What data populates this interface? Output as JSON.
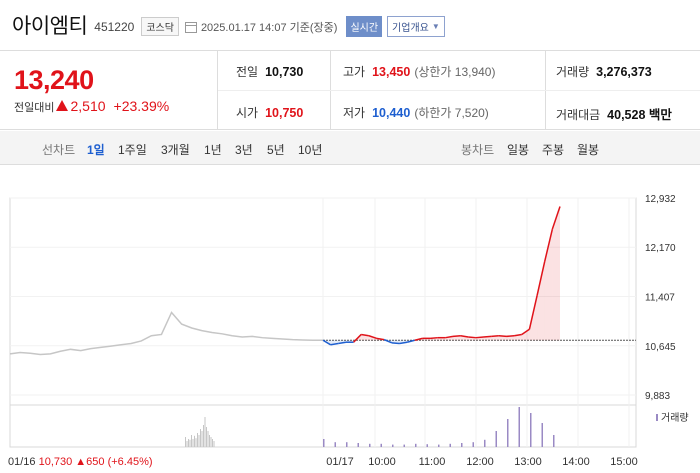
{
  "header": {
    "name": "아이엠티",
    "code": "451220",
    "market": "코스닥",
    "timestamp": "2025.01.17 14:07 기준(장중)",
    "realtime_label": "실시간",
    "info_label": "기업개요",
    "icons": {
      "calendar": "calendar-icon",
      "dropdown": "chevron-down-icon"
    }
  },
  "summary": {
    "price": "13,240",
    "change_label": "전일대비",
    "change_amount": "2,510",
    "change_pct": "+23.39%",
    "prev_close": {
      "label": "전일",
      "value": "10,730"
    },
    "open": {
      "label": "시가",
      "value": "10,750"
    },
    "high": {
      "label": "고가",
      "value": "13,450",
      "sub": "(상한가 13,940)"
    },
    "low": {
      "label": "저가",
      "value": "10,440",
      "sub": "(하한가 7,520)"
    },
    "volume": {
      "label": "거래량",
      "value": "3,276,373"
    },
    "amount": {
      "label": "거래대금",
      "value": "40,528 백만"
    }
  },
  "tabs": {
    "line_label": "선차트",
    "line": [
      "1일",
      "1주일",
      "3개월",
      "1년",
      "3년",
      "5년",
      "10년"
    ],
    "active": "1일",
    "candle_label": "봉차트",
    "candle": [
      "일봉",
      "주봉",
      "월봉"
    ]
  },
  "colors": {
    "up": "#e0131a",
    "down": "#1e5fd0",
    "prev_day": "#c6c6c6",
    "volume": "#9a8ac4"
  },
  "chart_data": {
    "type": "line",
    "y_ticks": [
      "12,932",
      "12,170",
      "11,407",
      "10,645",
      "9,883"
    ],
    "ylim": [
      9883,
      12932
    ],
    "reference_price": 10730,
    "x_labels": [
      "01/17",
      "10:00",
      "11:00",
      "12:00",
      "13:00",
      "14:00",
      "15:00"
    ],
    "volume_legend": "거래량",
    "prev_day_info": {
      "date": "01/16",
      "price": "10,730",
      "change": "650",
      "pct": "(+6.45%)"
    },
    "series": [
      {
        "values": [
          10520,
          10540,
          10530,
          10510,
          10520,
          10560,
          10590,
          10570,
          10600,
          10620,
          10640,
          10660,
          10680,
          10720,
          10800,
          10820,
          11160,
          10980,
          10920,
          10880,
          10850,
          10830,
          10800,
          10780,
          10790,
          10770,
          10760,
          10750,
          10740,
          10735,
          10730,
          10730
        ]
      },
      {
        "values": [
          10730,
          10660,
          10680,
          10700,
          10700,
          10820,
          10800,
          10760,
          10740,
          10690,
          10680,
          10700,
          10730,
          10760,
          10760,
          10770,
          10770,
          10790,
          10800,
          10780,
          10770,
          10780,
          10790,
          10800,
          10790,
          10800,
          10820,
          10900,
          11420,
          11950,
          12450,
          12800
        ]
      }
    ],
    "volume": {
      "prev_day": [
        0.25,
        0.15,
        0.2,
        0.18,
        0.3,
        0.2,
        0.28,
        0.22,
        0.35,
        0.3,
        0.45,
        0.4,
        0.55,
        0.75,
        0.5,
        0.4,
        0.3,
        0.25,
        0.2,
        0.15
      ],
      "today": [
        0.2,
        0.12,
        0.12,
        0.1,
        0.08,
        0.08,
        0.06,
        0.06,
        0.08,
        0.07,
        0.06,
        0.08,
        0.1,
        0.12,
        0.18,
        0.4,
        0.7,
        1.0,
        0.85,
        0.6,
        0.3
      ]
    }
  }
}
